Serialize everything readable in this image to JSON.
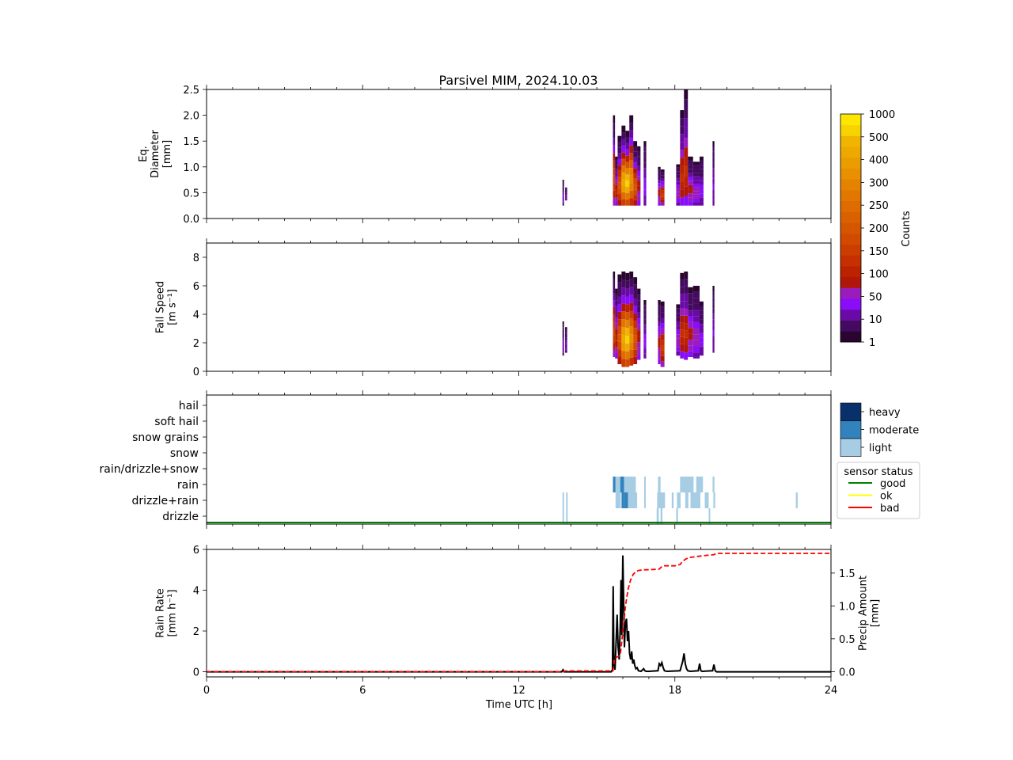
{
  "figure": {
    "title": "Parsivel MIM, 2024.10.03",
    "xlabel": "Time UTC [h]"
  },
  "colorbar_counts": {
    "label": "Counts",
    "ticks": [
      "1",
      "10",
      "50",
      "100",
      "150",
      "200",
      "250",
      "300",
      "400",
      "500",
      "1000"
    ],
    "colors": [
      "#2a0530",
      "#440a60",
      "#6a0aa6",
      "#8a0dfa",
      "#9a1cbc",
      "#b0160a",
      "#bd2200",
      "#c63000",
      "#cc3e00",
      "#d14a00",
      "#d65600",
      "#da6100",
      "#de6c00",
      "#e27700",
      "#e58300",
      "#e89000",
      "#eb9c00",
      "#eea800",
      "#f1b400",
      "#f7d400",
      "#ffe600"
    ]
  },
  "legend_intensity": {
    "items": [
      "heavy",
      "moderate",
      "light"
    ],
    "colors": [
      "#08306b",
      "#3182bd",
      "#a6cde4"
    ]
  },
  "legend_status": {
    "title": "sensor status",
    "items": [
      {
        "label": "good",
        "color": "#008000"
      },
      {
        "label": "ok",
        "color": "#ffff00"
      },
      {
        "label": "bad",
        "color": "#ff0000"
      }
    ]
  },
  "chart_data": [
    {
      "type": "heatmap",
      "panel": "diameter",
      "ylabel_lines": [
        "Eq.",
        "Diameter",
        "[mm]"
      ],
      "xlim": [
        0,
        24
      ],
      "ylim": [
        0,
        2.5
      ],
      "yticks": [
        "0.0",
        "0.5",
        "1.0",
        "1.5",
        "2.0",
        "2.5"
      ],
      "columns": [
        {
          "t0": 13.68,
          "t1": 13.74,
          "ymin": 0.25,
          "ymax": 0.75,
          "peak": 0.05
        },
        {
          "t0": 13.78,
          "t1": 13.86,
          "ymin": 0.35,
          "ymax": 0.6,
          "peak": 0.05
        },
        {
          "t0": 15.62,
          "t1": 15.7,
          "ymin": 0.25,
          "ymax": 2.0,
          "peak": 0.4
        },
        {
          "t0": 15.7,
          "t1": 15.8,
          "ymin": 0.25,
          "ymax": 1.2,
          "peak": 0.25
        },
        {
          "t0": 15.8,
          "t1": 15.95,
          "ymin": 0.25,
          "ymax": 1.6,
          "peak": 0.45
        },
        {
          "t0": 15.95,
          "t1": 16.1,
          "ymin": 0.25,
          "ymax": 1.8,
          "peak": 0.85
        },
        {
          "t0": 16.1,
          "t1": 16.25,
          "ymin": 0.25,
          "ymax": 1.7,
          "peak": 0.95
        },
        {
          "t0": 16.25,
          "t1": 16.4,
          "ymin": 0.25,
          "ymax": 2.0,
          "peak": 0.75
        },
        {
          "t0": 16.4,
          "t1": 16.55,
          "ymin": 0.25,
          "ymax": 1.5,
          "peak": 0.45
        },
        {
          "t0": 16.55,
          "t1": 16.68,
          "ymin": 0.25,
          "ymax": 1.4,
          "peak": 0.2
        },
        {
          "t0": 16.8,
          "t1": 16.9,
          "ymin": 0.25,
          "ymax": 1.5,
          "peak": 0.1
        },
        {
          "t0": 17.35,
          "t1": 17.45,
          "ymin": 0.25,
          "ymax": 1.0,
          "peak": 0.2
        },
        {
          "t0": 17.45,
          "t1": 17.6,
          "ymin": 0.25,
          "ymax": 0.95,
          "peak": 0.35
        },
        {
          "t0": 18.05,
          "t1": 18.2,
          "ymin": 0.25,
          "ymax": 1.05,
          "peak": 0.15
        },
        {
          "t0": 18.2,
          "t1": 18.35,
          "ymin": 0.25,
          "ymax": 2.1,
          "peak": 0.3
        },
        {
          "t0": 18.35,
          "t1": 18.5,
          "ymin": 0.25,
          "ymax": 2.5,
          "peak": 0.3
        },
        {
          "t0": 18.5,
          "t1": 18.7,
          "ymin": 0.25,
          "ymax": 1.2,
          "peak": 0.2
        },
        {
          "t0": 18.7,
          "t1": 18.95,
          "ymin": 0.25,
          "ymax": 1.1,
          "peak": 0.15
        },
        {
          "t0": 18.95,
          "t1": 19.1,
          "ymin": 0.25,
          "ymax": 1.2,
          "peak": 0.1
        },
        {
          "t0": 19.45,
          "t1": 19.52,
          "ymin": 0.25,
          "ymax": 1.5,
          "peak": 0.08
        }
      ]
    },
    {
      "type": "heatmap",
      "panel": "fall_speed",
      "ylabel_lines": [
        "Fall Speed",
        "[m s⁻¹]"
      ],
      "xlim": [
        0,
        24
      ],
      "ylim": [
        0,
        9
      ],
      "yticks": [
        "0",
        "2",
        "4",
        "6",
        "8"
      ],
      "columns": [
        {
          "t0": 13.68,
          "t1": 13.74,
          "ymin": 1.1,
          "ymax": 3.5,
          "peak": 0.05
        },
        {
          "t0": 13.78,
          "t1": 13.86,
          "ymin": 1.3,
          "ymax": 3.1,
          "peak": 0.05
        },
        {
          "t0": 15.62,
          "t1": 15.7,
          "ymin": 1.0,
          "ymax": 7.0,
          "peak": 0.4
        },
        {
          "t0": 15.7,
          "t1": 15.8,
          "ymin": 0.9,
          "ymax": 5.8,
          "peak": 0.25
        },
        {
          "t0": 15.8,
          "t1": 15.95,
          "ymin": 0.5,
          "ymax": 6.8,
          "peak": 0.45
        },
        {
          "t0": 15.95,
          "t1": 16.1,
          "ymin": 0.3,
          "ymax": 7.0,
          "peak": 0.85
        },
        {
          "t0": 16.1,
          "t1": 16.25,
          "ymin": 0.3,
          "ymax": 6.9,
          "peak": 0.95
        },
        {
          "t0": 16.25,
          "t1": 16.4,
          "ymin": 0.4,
          "ymax": 7.0,
          "peak": 0.75
        },
        {
          "t0": 16.4,
          "t1": 16.55,
          "ymin": 0.5,
          "ymax": 6.6,
          "peak": 0.45
        },
        {
          "t0": 16.55,
          "t1": 16.68,
          "ymin": 0.8,
          "ymax": 5.8,
          "peak": 0.2
        },
        {
          "t0": 16.8,
          "t1": 16.9,
          "ymin": 0.9,
          "ymax": 5.0,
          "peak": 0.1
        },
        {
          "t0": 17.35,
          "t1": 17.45,
          "ymin": 0.5,
          "ymax": 5.0,
          "peak": 0.2
        },
        {
          "t0": 17.45,
          "t1": 17.6,
          "ymin": 0.3,
          "ymax": 4.9,
          "peak": 0.35
        },
        {
          "t0": 18.05,
          "t1": 18.2,
          "ymin": 1.1,
          "ymax": 4.7,
          "peak": 0.15
        },
        {
          "t0": 18.2,
          "t1": 18.35,
          "ymin": 0.9,
          "ymax": 6.9,
          "peak": 0.3
        },
        {
          "t0": 18.35,
          "t1": 18.5,
          "ymin": 0.8,
          "ymax": 7.0,
          "peak": 0.3
        },
        {
          "t0": 18.5,
          "t1": 18.7,
          "ymin": 1.0,
          "ymax": 5.9,
          "peak": 0.2
        },
        {
          "t0": 18.7,
          "t1": 18.95,
          "ymin": 0.9,
          "ymax": 6.0,
          "peak": 0.15
        },
        {
          "t0": 18.95,
          "t1": 19.1,
          "ymin": 1.1,
          "ymax": 4.9,
          "peak": 0.1
        },
        {
          "t0": 19.45,
          "t1": 19.52,
          "ymin": 1.3,
          "ymax": 6.0,
          "peak": 0.08
        }
      ]
    },
    {
      "type": "heatmap",
      "panel": "precip_type",
      "xlim": [
        0,
        24
      ],
      "categories": [
        "drizzle",
        "drizzle+rain",
        "rain",
        "rain/drizzle+snow",
        "snow",
        "snow grains",
        "soft hail",
        "hail"
      ],
      "cells": [
        {
          "t0": 13.68,
          "t1": 13.74,
          "cat": 0,
          "level": "light"
        },
        {
          "t0": 13.68,
          "t1": 13.74,
          "cat": 1,
          "level": "light"
        },
        {
          "t0": 13.82,
          "t1": 13.88,
          "cat": 0,
          "level": "light"
        },
        {
          "t0": 13.82,
          "t1": 13.88,
          "cat": 1,
          "level": "light"
        },
        {
          "t0": 15.62,
          "t1": 15.72,
          "cat": 2,
          "level": "moderate"
        },
        {
          "t0": 15.72,
          "t1": 15.9,
          "cat": 2,
          "level": "light"
        },
        {
          "t0": 15.72,
          "t1": 15.92,
          "cat": 1,
          "level": "light"
        },
        {
          "t0": 15.9,
          "t1": 16.05,
          "cat": 2,
          "level": "moderate"
        },
        {
          "t0": 15.95,
          "t1": 16.05,
          "cat": 1,
          "level": "moderate"
        },
        {
          "t0": 16.05,
          "t1": 16.5,
          "cat": 2,
          "level": "light"
        },
        {
          "t0": 16.05,
          "t1": 16.2,
          "cat": 1,
          "level": "moderate"
        },
        {
          "t0": 16.2,
          "t1": 16.55,
          "cat": 1,
          "level": "light"
        },
        {
          "t0": 16.82,
          "t1": 16.88,
          "cat": 2,
          "level": "light"
        },
        {
          "t0": 16.82,
          "t1": 16.88,
          "cat": 1,
          "level": "light"
        },
        {
          "t0": 17.35,
          "t1": 17.45,
          "cat": 2,
          "level": "light"
        },
        {
          "t0": 17.32,
          "t1": 17.62,
          "cat": 1,
          "level": "light"
        },
        {
          "t0": 17.3,
          "t1": 17.38,
          "cat": 0,
          "level": "light"
        },
        {
          "t0": 17.45,
          "t1": 17.52,
          "cat": 0,
          "level": "light"
        },
        {
          "t0": 17.88,
          "t1": 17.95,
          "cat": 1,
          "level": "light"
        },
        {
          "t0": 18.05,
          "t1": 18.12,
          "cat": 0,
          "level": "light"
        },
        {
          "t0": 18.2,
          "t1": 18.72,
          "cat": 2,
          "level": "light"
        },
        {
          "t0": 18.08,
          "t1": 18.22,
          "cat": 1,
          "level": "light"
        },
        {
          "t0": 18.4,
          "t1": 18.52,
          "cat": 1,
          "level": "light"
        },
        {
          "t0": 18.6,
          "t1": 18.98,
          "cat": 1,
          "level": "light"
        },
        {
          "t0": 18.82,
          "t1": 19.08,
          "cat": 2,
          "level": "light"
        },
        {
          "t0": 19.15,
          "t1": 19.3,
          "cat": 1,
          "level": "light"
        },
        {
          "t0": 19.3,
          "t1": 19.36,
          "cat": 0,
          "level": "light"
        },
        {
          "t0": 19.45,
          "t1": 19.52,
          "cat": 2,
          "level": "light"
        },
        {
          "t0": 19.48,
          "t1": 19.55,
          "cat": 1,
          "level": "light"
        },
        {
          "t0": 22.65,
          "t1": 22.72,
          "cat": 1,
          "level": "light"
        }
      ],
      "status_line": {
        "status": "good"
      }
    },
    {
      "type": "line",
      "panel": "rain_rate",
      "xlim": [
        0,
        24
      ],
      "xticks": [
        "0",
        "6",
        "12",
        "18",
        "24"
      ],
      "series": [
        {
          "axis": "left",
          "ylabel_lines": [
            "Rain Rate",
            "[mm h⁻¹]"
          ],
          "ylim": [
            -0.25,
            6.0
          ],
          "yticks": [
            "0",
            "2",
            "4",
            "6"
          ],
          "color": "#000000",
          "x": [
            0,
            13.65,
            13.7,
            13.75,
            15.55,
            15.6,
            15.63,
            15.66,
            15.7,
            15.74,
            15.78,
            15.82,
            15.86,
            15.9,
            15.93,
            15.96,
            16.0,
            16.03,
            16.06,
            16.1,
            16.14,
            16.18,
            16.22,
            16.26,
            16.3,
            16.34,
            16.38,
            16.42,
            16.46,
            16.5,
            16.55,
            16.6,
            16.7,
            16.8,
            16.85,
            16.9,
            17.0,
            17.35,
            17.4,
            17.45,
            17.5,
            17.55,
            17.6,
            17.7,
            18.2,
            18.3,
            18.35,
            18.4,
            18.45,
            18.5,
            18.6,
            18.9,
            18.95,
            19.0,
            19.05,
            19.45,
            19.5,
            19.55,
            19.6,
            24
          ],
          "y": [
            0,
            0,
            0.1,
            0,
            0,
            0.1,
            4.2,
            0.3,
            0.1,
            1.5,
            2.8,
            1.2,
            0.6,
            2.2,
            4.5,
            1.8,
            5.7,
            3.5,
            1.2,
            2.4,
            2.6,
            1.5,
            2.0,
            0.9,
            0.6,
            1.0,
            0.4,
            0.6,
            0.3,
            0.15,
            0.2,
            0.05,
            0.02,
            0.15,
            0.05,
            0.02,
            0.02,
            0.05,
            0.4,
            0.3,
            0.45,
            0.2,
            0.05,
            0.02,
            0.05,
            0.5,
            0.9,
            0.4,
            0.15,
            0.05,
            0.02,
            0.05,
            0.4,
            0.05,
            0.02,
            0.05,
            0.35,
            0.05,
            0.0,
            0.0
          ]
        },
        {
          "axis": "right",
          "ylabel_lines": [
            "Precip Amount",
            "[mm]"
          ],
          "ylim": [
            -0.08,
            1.86
          ],
          "yticks": [
            "0.0",
            "0.5",
            "1.0",
            "1.5"
          ],
          "color": "#ff0000",
          "style": "dashed",
          "x": [
            0,
            13.7,
            13.8,
            15.62,
            15.68,
            15.9,
            16.0,
            16.1,
            16.2,
            16.3,
            16.4,
            16.5,
            16.6,
            16.8,
            17.0,
            17.4,
            17.5,
            17.6,
            18.0,
            18.2,
            18.3,
            18.45,
            18.6,
            19.0,
            19.5,
            19.6,
            24
          ],
          "y": [
            0,
            0,
            0.01,
            0.01,
            0.2,
            0.25,
            0.6,
            1.0,
            1.25,
            1.4,
            1.48,
            1.52,
            1.54,
            1.55,
            1.55,
            1.56,
            1.6,
            1.61,
            1.61,
            1.63,
            1.68,
            1.72,
            1.74,
            1.76,
            1.78,
            1.8,
            1.8
          ]
        }
      ]
    }
  ]
}
